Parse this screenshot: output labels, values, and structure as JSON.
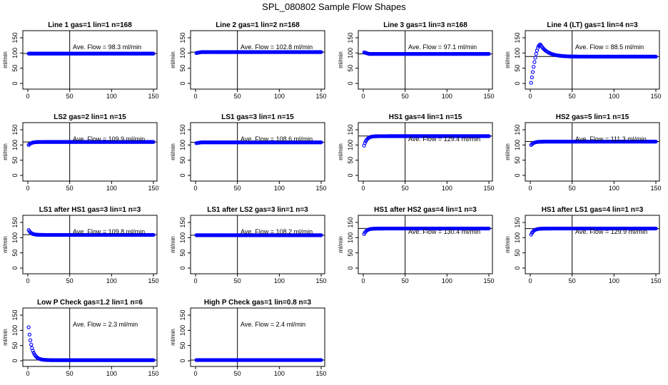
{
  "figure_title": "SPL_080802  Sample Flow Shapes",
  "chart_data": [
    {
      "type": "scatter",
      "title": "Line 1 gas=1 lin=1 n=168",
      "ylabel": "ml/min",
      "annotation": "Ave. Flow =  98.3  ml/min",
      "mean_flow": 98.3,
      "xlim": [
        0,
        150
      ],
      "ylim": [
        0,
        150
      ],
      "xticks": [
        "0",
        "50",
        "100",
        "150"
      ],
      "yticks": [
        "0",
        "50",
        "100",
        "150"
      ],
      "vline_x": 50,
      "shape": {
        "kind": "flat",
        "start": 98,
        "end": 98,
        "xstart": 1,
        "xend": 150
      }
    },
    {
      "type": "scatter",
      "title": "Line 2 gas=1 lin=2 n=168",
      "ylabel": "ml/min",
      "annotation": "Ave. Flow =  102.8  ml/min",
      "mean_flow": 102.8,
      "xlim": [
        0,
        150
      ],
      "ylim": [
        0,
        150
      ],
      "xticks": [
        "0",
        "50",
        "100",
        "150"
      ],
      "yticks": [
        "0",
        "50",
        "100",
        "150"
      ],
      "vline_x": 50,
      "shape": {
        "kind": "flat",
        "start": 100,
        "end": 103,
        "xstart": 1,
        "xend": 150
      }
    },
    {
      "type": "scatter",
      "title": "Line 3 gas=1 lin=3 n=168",
      "ylabel": "ml/min",
      "annotation": "Ave. Flow =  97.1  ml/min",
      "mean_flow": 97.1,
      "xlim": [
        0,
        150
      ],
      "ylim": [
        0,
        150
      ],
      "xticks": [
        "0",
        "50",
        "100",
        "150"
      ],
      "yticks": [
        "0",
        "50",
        "100",
        "150"
      ],
      "vline_x": 50,
      "shape": {
        "kind": "flat",
        "start": 102,
        "end": 97,
        "xstart": 1,
        "xend": 150
      }
    },
    {
      "type": "scatter",
      "title": "Line 4 (LT) gas=1 lin=4 n=3",
      "ylabel": "ml/min",
      "annotation": "Ave. Flow =  88.5  ml/min",
      "mean_flow": 88.5,
      "xlim": [
        0,
        150
      ],
      "ylim": [
        0,
        150
      ],
      "xticks": [
        "0",
        "50",
        "100",
        "150"
      ],
      "yticks": [
        "0",
        "50",
        "100",
        "150"
      ],
      "vline_x": 50,
      "shape": {
        "kind": "peak",
        "start": 2,
        "peak": 128,
        "peak_x": 12,
        "end": 88,
        "xstart": 1,
        "xend": 150
      }
    },
    {
      "type": "scatter",
      "title": "LS2 gas=2 lin=1 n=15",
      "ylabel": "ml/min",
      "annotation": "Ave. Flow =  109.9  ml/min",
      "mean_flow": 109.9,
      "xlim": [
        0,
        150
      ],
      "ylim": [
        0,
        150
      ],
      "xticks": [
        "0",
        "50",
        "100",
        "150"
      ],
      "yticks": [
        "0",
        "50",
        "100",
        "150"
      ],
      "vline_x": 50,
      "shape": {
        "kind": "rise",
        "start": 100,
        "end": 110,
        "xstart": 1,
        "xend": 150
      }
    },
    {
      "type": "scatter",
      "title": "LS1 gas=3 lin=1 n=15",
      "ylabel": "ml/min",
      "annotation": "Ave. Flow =  108.6  ml/min",
      "mean_flow": 108.6,
      "xlim": [
        0,
        150
      ],
      "ylim": [
        0,
        150
      ],
      "xticks": [
        "0",
        "50",
        "100",
        "150"
      ],
      "yticks": [
        "0",
        "50",
        "100",
        "150"
      ],
      "vline_x": 50,
      "shape": {
        "kind": "flat",
        "start": 106,
        "end": 108.6,
        "xstart": 1,
        "xend": 150
      }
    },
    {
      "type": "scatter",
      "title": "HS1 gas=4 lin=1 n=15",
      "ylabel": "ml/min",
      "annotation": "Ave. Flow =  129.4  ml/min",
      "mean_flow": 129.4,
      "xlim": [
        0,
        150
      ],
      "ylim": [
        0,
        150
      ],
      "xticks": [
        "0",
        "50",
        "100",
        "150"
      ],
      "yticks": [
        "0",
        "50",
        "100",
        "150"
      ],
      "vline_x": 50,
      "shape": {
        "kind": "rise",
        "start": 98,
        "end": 129,
        "xstart": 1,
        "xend": 150
      }
    },
    {
      "type": "scatter",
      "title": "HS2 gas=5 lin=1 n=15",
      "ylabel": "ml/min",
      "annotation": "Ave. Flow =  111.3  ml/min",
      "mean_flow": 111.3,
      "xlim": [
        0,
        150
      ],
      "ylim": [
        0,
        150
      ],
      "xticks": [
        "0",
        "50",
        "100",
        "150"
      ],
      "yticks": [
        "0",
        "50",
        "100",
        "150"
      ],
      "vline_x": 50,
      "shape": {
        "kind": "rise",
        "start": 100,
        "end": 111,
        "xstart": 1,
        "xend": 150
      }
    },
    {
      "type": "scatter",
      "title": "LS1 after HS1 gas=3 lin=1 n=3",
      "ylabel": "ml/min",
      "annotation": "Ave. Flow =  109.8  ml/min",
      "mean_flow": 109.8,
      "xlim": [
        0,
        150
      ],
      "ylim": [
        0,
        150
      ],
      "xticks": [
        "0",
        "50",
        "100",
        "150"
      ],
      "yticks": [
        "0",
        "50",
        "100",
        "150"
      ],
      "vline_x": 50,
      "shape": {
        "kind": "fall",
        "start": 125,
        "end": 109,
        "xstart": 1,
        "xend": 150
      }
    },
    {
      "type": "scatter",
      "title": "LS1 after LS2 gas=3 lin=1 n=3",
      "ylabel": "ml/min",
      "annotation": "Ave. Flow =  108.2  ml/min",
      "mean_flow": 108.2,
      "xlim": [
        0,
        150
      ],
      "ylim": [
        0,
        150
      ],
      "xticks": [
        "0",
        "50",
        "100",
        "150"
      ],
      "yticks": [
        "0",
        "50",
        "100",
        "150"
      ],
      "vline_x": 50,
      "shape": {
        "kind": "flat",
        "start": 108,
        "end": 108,
        "xstart": 1,
        "xend": 150
      }
    },
    {
      "type": "scatter",
      "title": "HS1 after HS2 gas=4 lin=1 n=3",
      "ylabel": "ml/min",
      "annotation": "Ave. Flow =  130.4  ml/min",
      "mean_flow": 130.4,
      "xlim": [
        0,
        150
      ],
      "ylim": [
        0,
        150
      ],
      "xticks": [
        "0",
        "50",
        "100",
        "150"
      ],
      "yticks": [
        "0",
        "50",
        "100",
        "150"
      ],
      "vline_x": 50,
      "shape": {
        "kind": "rise",
        "start": 112,
        "end": 130,
        "xstart": 1,
        "xend": 150
      }
    },
    {
      "type": "scatter",
      "title": "HS1 after LS1 gas=4 lin=1 n=3",
      "ylabel": "ml/min",
      "annotation": "Ave. Flow =  129.9  ml/min",
      "mean_flow": 129.9,
      "xlim": [
        0,
        150
      ],
      "ylim": [
        0,
        150
      ],
      "xticks": [
        "0",
        "50",
        "100",
        "150"
      ],
      "yticks": [
        "0",
        "50",
        "100",
        "150"
      ],
      "vline_x": 50,
      "shape": {
        "kind": "rise",
        "start": 110,
        "end": 130,
        "xstart": 1,
        "xend": 150
      }
    },
    {
      "type": "scatter",
      "title": "Low P Check gas=1.2 lin=1 n=6",
      "ylabel": "ml/min",
      "annotation": "Ave. Flow =  2.3  ml/min",
      "mean_flow": 2.3,
      "xlim": [
        0,
        150
      ],
      "ylim": [
        0,
        150
      ],
      "xticks": [
        "0",
        "50",
        "100",
        "150"
      ],
      "yticks": [
        "0",
        "50",
        "100",
        "150"
      ],
      "vline_x": 50,
      "shape": {
        "kind": "fall",
        "start": 110,
        "end": 2,
        "xstart": 1,
        "xend": 150
      }
    },
    {
      "type": "scatter",
      "title": "High P Check gas=1 lin=0.8 n=3",
      "ylabel": "ml/min",
      "annotation": "Ave. Flow =  2.4  ml/min",
      "mean_flow": 2.4,
      "xlim": [
        0,
        150
      ],
      "ylim": [
        0,
        150
      ],
      "xticks": [
        "0",
        "50",
        "100",
        "150"
      ],
      "yticks": [
        "0",
        "50",
        "100",
        "150"
      ],
      "vline_x": 50,
      "shape": {
        "kind": "flat",
        "start": 2.4,
        "end": 2.4,
        "xstart": 1,
        "xend": 150
      }
    }
  ],
  "colors": {
    "points": "#0000ff",
    "axes": "#000000",
    "background": "#ffffff"
  }
}
